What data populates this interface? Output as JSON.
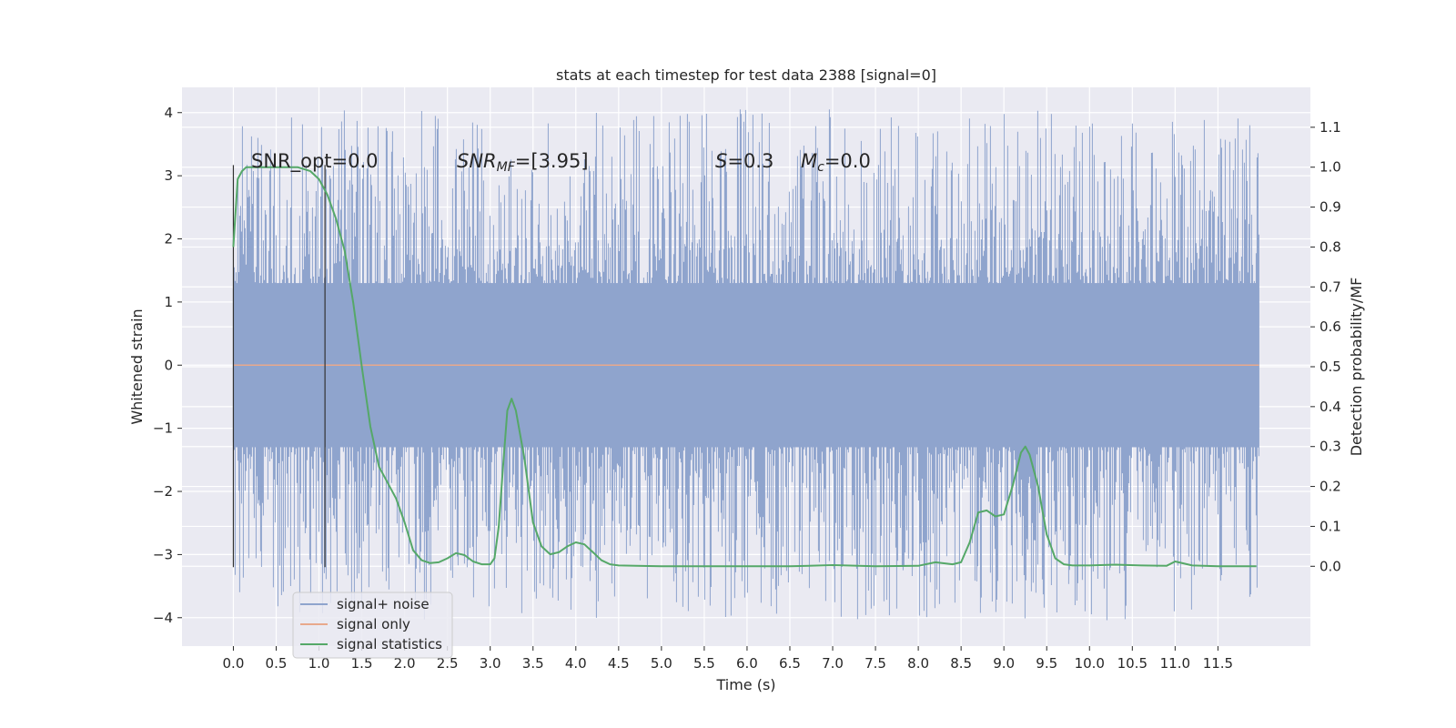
{
  "chart_data": {
    "type": "line",
    "title": "stats at each timestep for test data 2388 [signal=0]",
    "xlabel": "Time (s)",
    "ylabel": "Whitened strain",
    "ylabel_right": "Detection probability/MF",
    "xlim": [
      -0.6,
      12.58
    ],
    "ylim": [
      -4.45,
      4.4
    ],
    "ylim_right": [
      -0.2,
      1.2
    ],
    "x_ticks": [
      "0.0",
      "0.5",
      "1.0",
      "1.5",
      "2.0",
      "2.5",
      "3.0",
      "3.5",
      "4.0",
      "4.5",
      "5.0",
      "5.5",
      "6.0",
      "6.5",
      "7.0",
      "7.5",
      "8.0",
      "8.5",
      "9.0",
      "9.5",
      "10.0",
      "10.5",
      "11.0",
      "11.5"
    ],
    "y_ticks": [
      "4",
      "3",
      "2",
      "1",
      "0",
      "−1",
      "−2",
      "−3",
      "−4"
    ],
    "y_ticks_right": [
      "1.1",
      "1.0",
      "0.9",
      "0.8",
      "0.7",
      "0.6",
      "0.5",
      "0.4",
      "0.3",
      "0.2",
      "0.1",
      "0.0"
    ],
    "grid": true,
    "legend_placement": "lower-left",
    "annotations": {
      "snr_opt": "SNR_opt=0.0",
      "snr_mf_prefix": "SNR",
      "snr_mf_sub": "MF",
      "snr_mf_suffix": "=[3.95]",
      "s_symbol": "S",
      "s_value": "=0.3",
      "mc_symbol": "M",
      "mc_sub": "c",
      "mc_value": "=0.0"
    },
    "vertical_lines_x": [
      0.0,
      1.07
    ],
    "series": [
      {
        "name": "signal+ noise",
        "color": "#8fa4cd",
        "kind": "noise",
        "x_range": [
          0.0,
          11.98
        ],
        "envelope": {
          "typical_abs": 1.3,
          "max": 4.05,
          "min": -4.05
        }
      },
      {
        "name": "signal only",
        "color": "#e8a98c",
        "kind": "flat",
        "x": [
          0.0,
          11.98
        ],
        "y": [
          0.0,
          0.0
        ]
      },
      {
        "name": "signal statistics",
        "color": "#55a868",
        "axis": "right",
        "x": [
          0.0,
          0.05,
          0.1,
          0.15,
          0.25,
          0.5,
          0.75,
          0.9,
          1.0,
          1.1,
          1.2,
          1.3,
          1.4,
          1.5,
          1.6,
          1.7,
          1.8,
          1.9,
          2.0,
          2.1,
          2.2,
          2.3,
          2.4,
          2.5,
          2.6,
          2.7,
          2.8,
          2.9,
          3.0,
          3.05,
          3.1,
          3.15,
          3.2,
          3.25,
          3.3,
          3.35,
          3.4,
          3.5,
          3.6,
          3.7,
          3.8,
          3.9,
          4.0,
          4.1,
          4.2,
          4.3,
          4.4,
          4.5,
          4.7,
          5.0,
          5.5,
          6.0,
          6.5,
          7.0,
          7.5,
          8.0,
          8.2,
          8.4,
          8.5,
          8.6,
          8.7,
          8.8,
          8.9,
          9.0,
          9.1,
          9.2,
          9.25,
          9.3,
          9.4,
          9.5,
          9.6,
          9.7,
          9.8,
          10.0,
          10.3,
          10.6,
          10.9,
          11.0,
          11.2,
          11.5,
          11.95
        ],
        "y": [
          0.8,
          0.97,
          0.99,
          1.0,
          1.0,
          1.0,
          1.0,
          0.99,
          0.97,
          0.93,
          0.87,
          0.79,
          0.66,
          0.5,
          0.35,
          0.25,
          0.21,
          0.17,
          0.11,
          0.04,
          0.015,
          0.008,
          0.01,
          0.02,
          0.033,
          0.028,
          0.012,
          0.005,
          0.005,
          0.02,
          0.1,
          0.25,
          0.39,
          0.42,
          0.39,
          0.33,
          0.27,
          0.11,
          0.05,
          0.03,
          0.035,
          0.05,
          0.06,
          0.055,
          0.035,
          0.015,
          0.005,
          0.002,
          0.001,
          0.0,
          0.0,
          0.0,
          0.0,
          0.003,
          0.0,
          0.001,
          0.01,
          0.005,
          0.01,
          0.06,
          0.135,
          0.14,
          0.125,
          0.13,
          0.2,
          0.285,
          0.3,
          0.28,
          0.2,
          0.08,
          0.02,
          0.005,
          0.002,
          0.002,
          0.004,
          0.002,
          0.001,
          0.012,
          0.002,
          0.0,
          0.0
        ]
      }
    ]
  }
}
